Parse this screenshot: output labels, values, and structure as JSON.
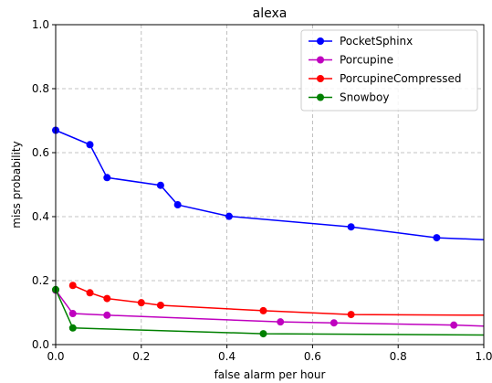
{
  "chart_data": {
    "type": "line",
    "title": "alexa",
    "xlabel": "false alarm per hour",
    "ylabel": "miss probability",
    "xlim": [
      0,
      1
    ],
    "ylim": [
      0,
      1
    ],
    "xticks": [
      "0.0",
      "0.2",
      "0.4",
      "0.6",
      "0.8",
      "1.0"
    ],
    "yticks": [
      "0.0",
      "0.2",
      "0.4",
      "0.6",
      "0.8",
      "1.0"
    ],
    "grid": true,
    "legend_position": "top-right",
    "series": [
      {
        "name": "PocketSphinx",
        "color": "#0000ff",
        "x": [
          0.0,
          0.08,
          0.12,
          0.245,
          0.285,
          0.405,
          0.69,
          0.89,
          1.0
        ],
        "y": [
          0.67,
          0.625,
          0.522,
          0.498,
          0.437,
          0.401,
          0.368,
          0.334,
          0.328
        ]
      },
      {
        "name": "Porcupine",
        "color": "#bf00bf",
        "x": [
          0.0,
          0.04,
          0.12,
          0.525,
          0.65,
          0.93,
          1.0
        ],
        "y": [
          0.17,
          0.097,
          0.092,
          0.071,
          0.068,
          0.061,
          0.058
        ]
      },
      {
        "name": "PorcupineCompressed",
        "color": "#ff0000",
        "x": [
          0.04,
          0.08,
          0.12,
          0.2,
          0.245,
          0.485,
          0.69,
          1.0
        ],
        "y": [
          0.185,
          0.162,
          0.144,
          0.131,
          0.123,
          0.106,
          0.094,
          0.092
        ]
      },
      {
        "name": "Snowboy",
        "color": "#008000",
        "x": [
          0.0,
          0.04,
          0.485,
          1.0
        ],
        "y": [
          0.172,
          0.052,
          0.034,
          0.03
        ]
      }
    ]
  }
}
